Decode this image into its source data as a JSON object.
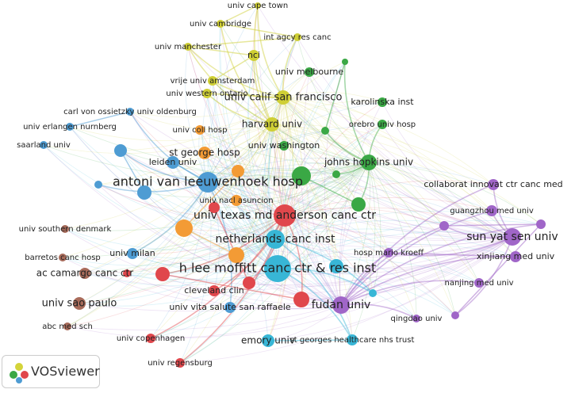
{
  "nodes": [
    {
      "label": "univ cape town"
    },
    {
      "label": "univ cambridge"
    },
    {
      "label": "int agcy res canc"
    },
    {
      "label": "univ manchester"
    },
    {
      "label": "nci"
    },
    {
      "label": "vrije univ amsterdam"
    },
    {
      "label": "univ melbourne"
    },
    {
      "label": "univ western ontario"
    },
    {
      "label": "univ calif san francisco"
    },
    {
      "label": "karolinska inst"
    },
    {
      "label": "harvard univ"
    },
    {
      "label": "orebro univ hosp"
    },
    {
      "label": "carl von ossietzky univ oldenburg"
    },
    {
      "label": "univ erlangen nurnberg"
    },
    {
      "label": "univ coll hosp"
    },
    {
      "label": "univ washington"
    },
    {
      "label": "saarland univ"
    },
    {
      "label": "st george hosp"
    },
    {
      "label": "johns hopkins univ"
    },
    {
      "label": "leiden univ"
    },
    {
      "label": "antoni van leeuwenhoek hosp"
    },
    {
      "label": "collaborat innovat ctr canc med"
    },
    {
      "label": "univ nacl asuncion"
    },
    {
      "label": "univ texas md anderson canc ctr"
    },
    {
      "label": "guangzhou med univ"
    },
    {
      "label": "univ southern denmark"
    },
    {
      "label": "sun yat sen univ"
    },
    {
      "label": "netherlands canc inst"
    },
    {
      "label": "barretos canc hosp"
    },
    {
      "label": "univ milan"
    },
    {
      "label": "hosp mario kroeff"
    },
    {
      "label": "xinjiang med univ"
    },
    {
      "label": "ac camargo canc ctr"
    },
    {
      "label": "h lee moffitt canc ctr & res inst"
    },
    {
      "label": "nanjing med univ"
    },
    {
      "label": "univ sao paulo"
    },
    {
      "label": "cleveland clin"
    },
    {
      "label": "fudan univ"
    },
    {
      "label": "univ vita salute san raffaele"
    },
    {
      "label": "abc med sch"
    },
    {
      "label": "qingdao univ"
    },
    {
      "label": "univ copenhagen"
    },
    {
      "label": "emory univ"
    },
    {
      "label": "st georges healthcare nhs trust"
    },
    {
      "label": "univ regensburg"
    }
  ],
  "logo": "VOSviewer"
}
